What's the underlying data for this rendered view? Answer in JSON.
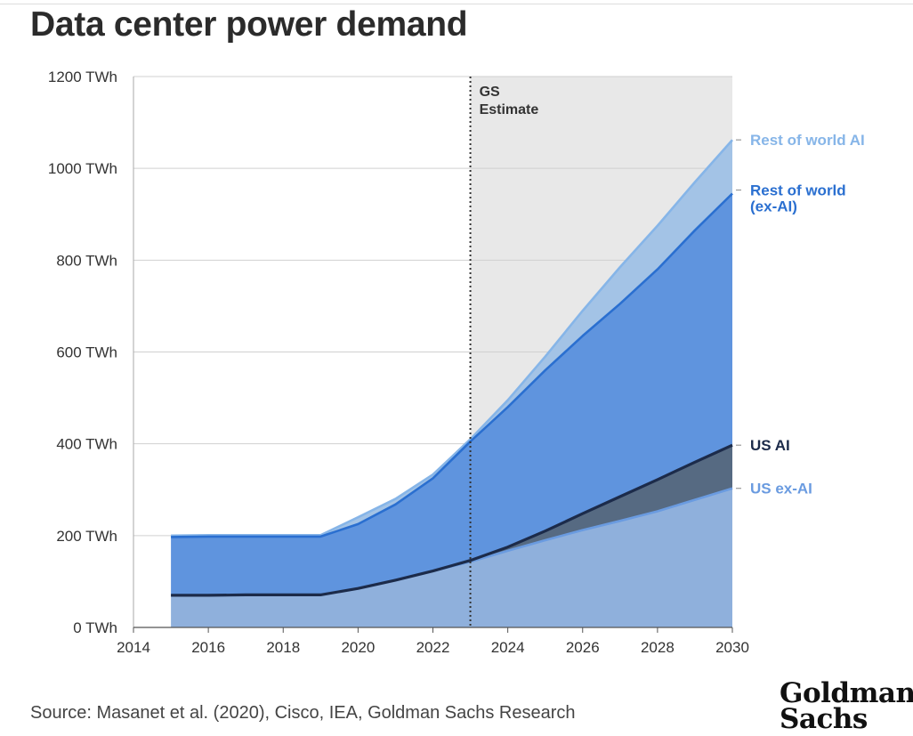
{
  "title": "Data center power demand",
  "source": "Source: Masanet et al. (2020), Cisco, IEA, Goldman Sachs Research",
  "logo": {
    "line1": "Goldman",
    "line2": "Sachs"
  },
  "chart_data": {
    "type": "area",
    "title": "Data center power demand",
    "x_unit": "year",
    "y_unit": "TWh",
    "xlim": [
      2014,
      2030
    ],
    "ylim": [
      0,
      1200
    ],
    "x_ticks": [
      2014,
      2016,
      2018,
      2020,
      2022,
      2024,
      2026,
      2028,
      2030
    ],
    "y_ticks": [
      0,
      200,
      400,
      600,
      800,
      1000,
      1200
    ],
    "x_tick_labels": [
      "2014",
      "2016",
      "2018",
      "2020",
      "2022",
      "2024",
      "2026",
      "2028",
      "2030"
    ],
    "y_tick_labels": [
      "0 TWh",
      "200 TWh",
      "400 TWh",
      "600 TWh",
      "800 TWh",
      "1000 TWh",
      "1200 TWh"
    ],
    "grid": "horizontal",
    "estimate_start": 2023,
    "estimate_label": [
      "GS",
      "Estimate"
    ],
    "stacking": "cumulative lines shown",
    "x": [
      2015,
      2016,
      2017,
      2018,
      2019,
      2020,
      2021,
      2022,
      2023,
      2024,
      2025,
      2026,
      2027,
      2028,
      2029,
      2030
    ],
    "series": [
      {
        "name": "US ex-AI",
        "label": [
          "US ex-AI"
        ],
        "color": "#6a9be0",
        "fill": "#8fb0dc",
        "values": [
          70,
          70,
          71,
          71,
          71,
          85,
          103,
          123,
          143,
          167,
          190,
          212,
          232,
          253,
          278,
          303
        ]
      },
      {
        "name": "US AI",
        "label": [
          "US AI"
        ],
        "color": "#1c2b4a",
        "fill": "#566a82",
        "values": [
          70,
          70,
          71,
          71,
          71,
          85,
          103,
          123,
          146,
          175,
          210,
          248,
          285,
          322,
          360,
          397
        ]
      },
      {
        "name": "Rest of world (ex-AI)",
        "label": [
          "Rest of world",
          "(ex-AI)"
        ],
        "color": "#2a6fd0",
        "fill": "#5f94de",
        "values": [
          197,
          198,
          198,
          198,
          198,
          225,
          268,
          325,
          405,
          480,
          560,
          635,
          705,
          780,
          865,
          945
        ]
      },
      {
        "name": "Rest of world AI",
        "label": [
          "Rest of world AI"
        ],
        "color": "#86b5e8",
        "fill": "#a3c3e6",
        "values": [
          200,
          201,
          201,
          201,
          201,
          240,
          280,
          333,
          410,
          495,
          590,
          690,
          785,
          875,
          970,
          1062
        ]
      }
    ]
  }
}
